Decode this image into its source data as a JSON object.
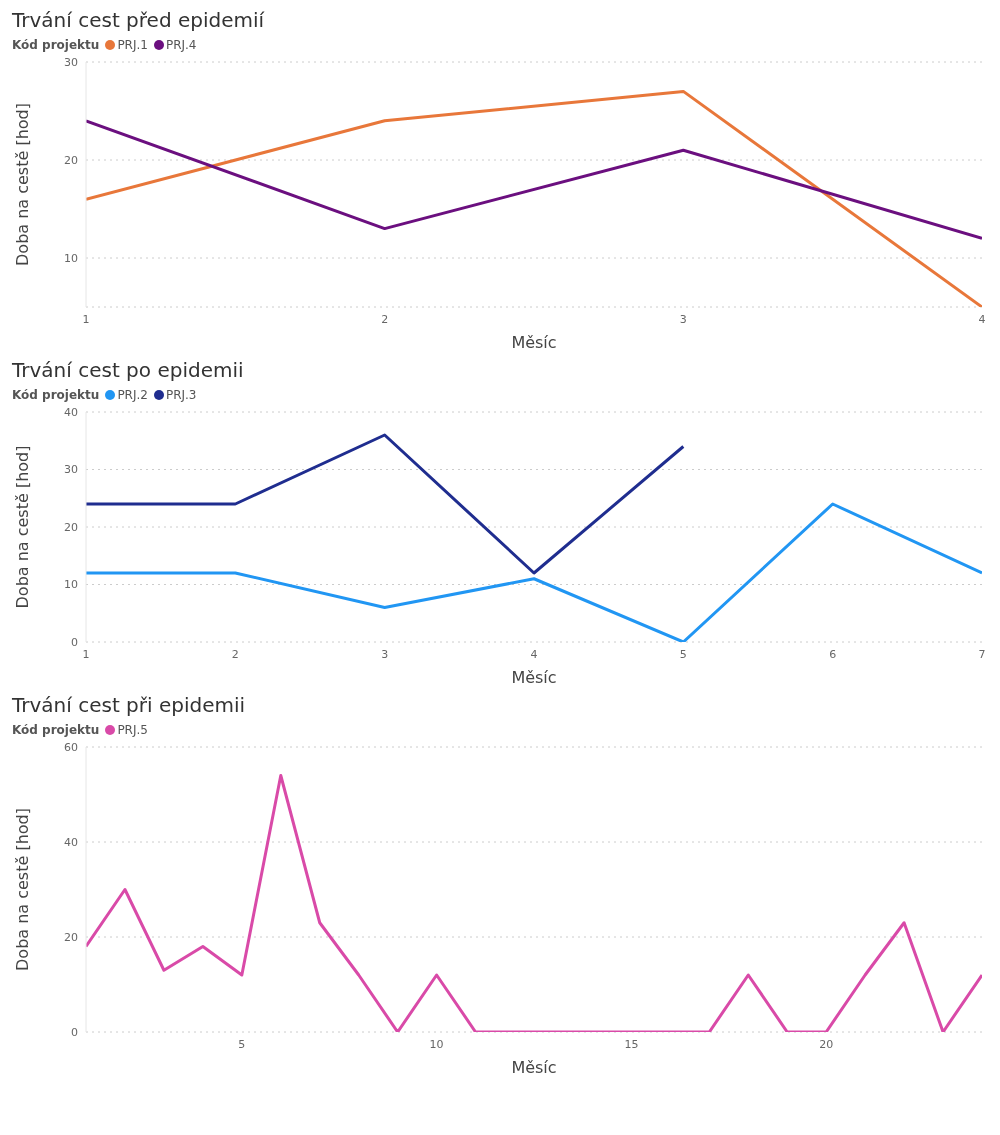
{
  "chart_data": [
    {
      "type": "line",
      "title": "Trvání cest před epidemií",
      "legend_title": "Kód projektu",
      "xlabel": "Měsíc",
      "ylabel": "Doba na cestě [hod]",
      "x": [
        1,
        2,
        3,
        4
      ],
      "xlim": [
        1,
        4
      ],
      "xticks": [
        1,
        2,
        3,
        4
      ],
      "ylim": [
        5,
        30
      ],
      "yticks": [
        10,
        20,
        30
      ],
      "grid": "y",
      "legend": "top left",
      "line_style": "solid",
      "series": [
        {
          "name": "PRJ.1",
          "color": "#e8773a",
          "values": [
            16,
            24,
            27,
            5
          ]
        },
        {
          "name": "PRJ.4",
          "color": "#6b0f7f",
          "values": [
            24,
            13,
            21,
            12
          ]
        }
      ]
    },
    {
      "type": "line",
      "title": "Trvání cest po epidemii",
      "legend_title": "Kód projektu",
      "xlabel": "Měsíc",
      "ylabel": "Doba na cestě [hod]",
      "x": [
        1,
        2,
        3,
        4,
        5,
        6,
        7
      ],
      "xlim": [
        1,
        7
      ],
      "xticks": [
        1,
        2,
        3,
        4,
        5,
        6,
        7
      ],
      "ylim": [
        0,
        40
      ],
      "yticks": [
        0,
        10,
        20,
        30,
        40
      ],
      "grid": "y",
      "legend": "top left",
      "line_style": "solid",
      "series": [
        {
          "name": "PRJ.2",
          "color": "#2196f3",
          "values": [
            12,
            12,
            6,
            11,
            0,
            24,
            12
          ]
        },
        {
          "name": "PRJ.3",
          "color": "#1f2d8f",
          "values": [
            24,
            24,
            36,
            12,
            34,
            null,
            null
          ]
        }
      ]
    },
    {
      "type": "line",
      "title": "Trvání cest při epidemii",
      "legend_title": "Kód projektu",
      "xlabel": "Měsíc",
      "ylabel": "Doba na cestě [hod]",
      "x": [
        1,
        2,
        3,
        4,
        5,
        6,
        7,
        8,
        9,
        10,
        11,
        12,
        13,
        14,
        15,
        16,
        17,
        18,
        19,
        20,
        21,
        22,
        23,
        24
      ],
      "xlim": [
        1,
        24
      ],
      "xticks": [
        5,
        10,
        15,
        20
      ],
      "ylim": [
        0,
        60
      ],
      "yticks": [
        0,
        20,
        40,
        60
      ],
      "grid": "y",
      "legend": "top left",
      "line_style": "solid",
      "series": [
        {
          "name": "PRJ.5",
          "color": "#d94aa8",
          "values": [
            18,
            30,
            13,
            18,
            12,
            54,
            23,
            12,
            0,
            12,
            0,
            0,
            0,
            0,
            0,
            0,
            0,
            12,
            0,
            0,
            12,
            23,
            0,
            12
          ]
        }
      ]
    }
  ]
}
